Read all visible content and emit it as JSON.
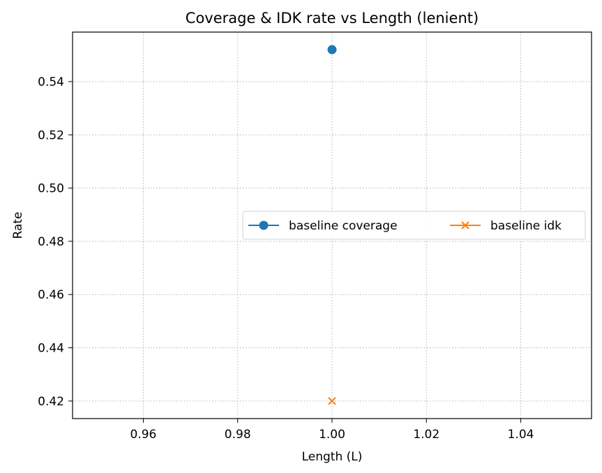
{
  "chart_data": {
    "type": "line",
    "title": "Coverage & IDK rate vs Length (lenient)",
    "xlabel": "Length (L)",
    "ylabel": "Rate",
    "xlim": [
      0.945,
      1.055
    ],
    "ylim": [
      0.4134,
      0.5586
    ],
    "x_ticks": [
      0.96,
      0.98,
      1.0,
      1.02,
      1.04
    ],
    "x_tick_labels": [
      "0.96",
      "0.98",
      "1.00",
      "1.02",
      "1.04"
    ],
    "y_ticks": [
      0.42,
      0.44,
      0.46,
      0.48,
      0.5,
      0.52,
      0.54
    ],
    "y_tick_labels": [
      "0.42",
      "0.44",
      "0.46",
      "0.48",
      "0.50",
      "0.52",
      "0.54"
    ],
    "grid": true,
    "legend_position": "center-right",
    "series": [
      {
        "name": "baseline coverage",
        "x": [
          1.0
        ],
        "values": [
          0.552
        ],
        "marker": "circle",
        "color": "#1f77b4"
      },
      {
        "name": "baseline idk",
        "x": [
          1.0
        ],
        "values": [
          0.42
        ],
        "marker": "x",
        "color": "#ff7f0e"
      }
    ]
  }
}
